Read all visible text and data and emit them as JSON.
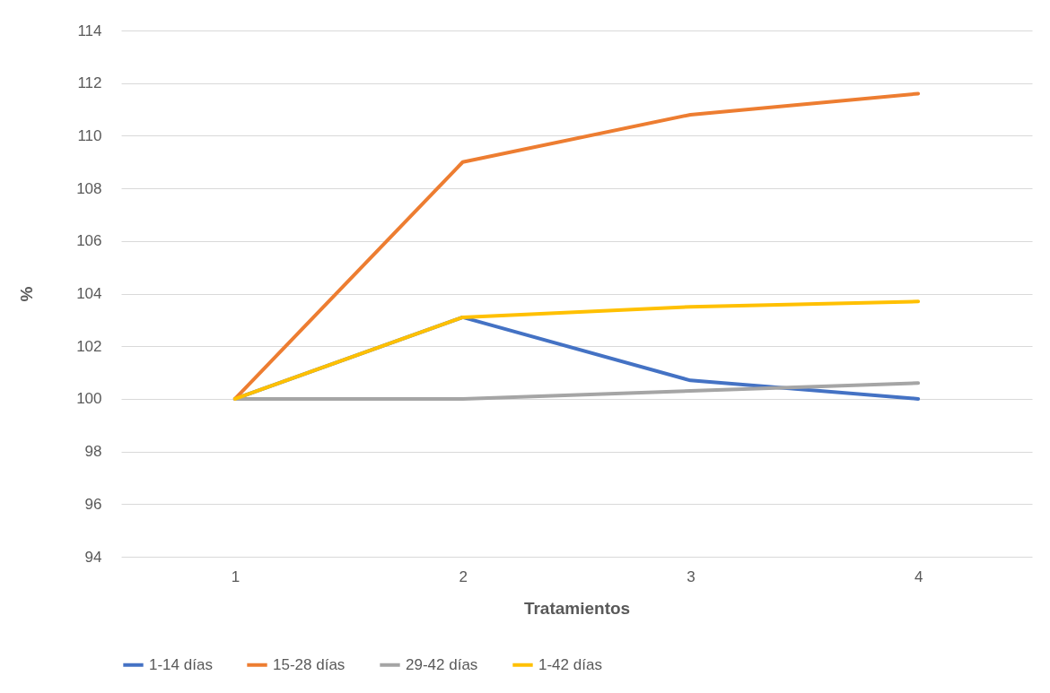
{
  "chart_data": {
    "type": "line",
    "xlabel": "Tratamientos",
    "ylabel": "%",
    "categories": [
      "1",
      "2",
      "3",
      "4"
    ],
    "ylim": [
      94,
      114
    ],
    "yticks": [
      94,
      96,
      98,
      100,
      102,
      104,
      106,
      108,
      110,
      112,
      114
    ],
    "grid": "y",
    "legend": "bottom",
    "marker": "none",
    "line_style": "solid",
    "series": [
      {
        "name": "1-14 días",
        "color": "#4472c4",
        "values": [
          100,
          103.1,
          100.7,
          100.0
        ]
      },
      {
        "name": "15-28 días",
        "color": "#ed7d31",
        "values": [
          100,
          109.0,
          110.8,
          111.6
        ]
      },
      {
        "name": "29-42 días",
        "color": "#a5a5a5",
        "values": [
          100,
          100.0,
          100.3,
          100.6
        ]
      },
      {
        "name": "1-42 días",
        "color": "#ffc000",
        "values": [
          100,
          103.1,
          103.5,
          103.7
        ]
      }
    ]
  }
}
